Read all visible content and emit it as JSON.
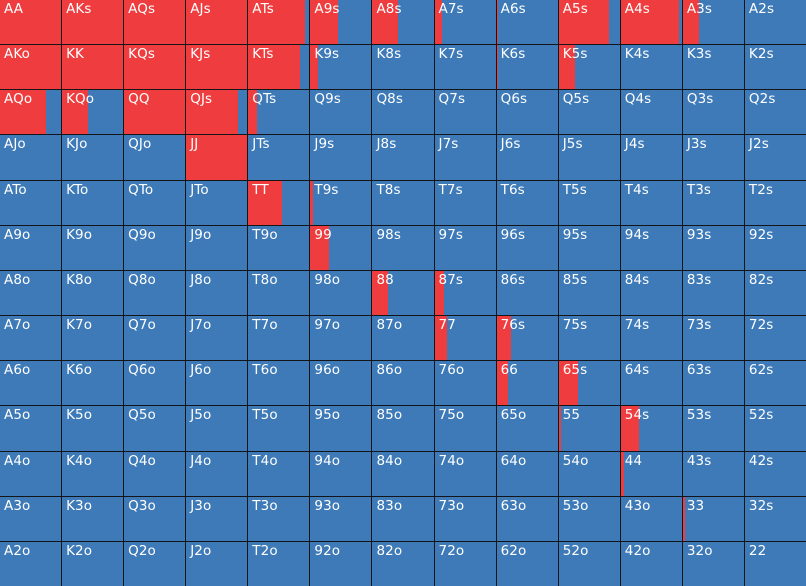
{
  "colors": {
    "raise": "#ef3d3f",
    "fold": "#3d7ab7",
    "grid_line": "#141518"
  },
  "ranks": [
    "A",
    "K",
    "Q",
    "J",
    "T",
    "9",
    "8",
    "7",
    "6",
    "5",
    "4",
    "3",
    "2"
  ],
  "hand_matrix": [
    {
      "cells": [
        {
          "hand": "AA",
          "raise_fraction": 1.0
        },
        {
          "hand": "AKs",
          "raise_fraction": 1.0
        },
        {
          "hand": "AQs",
          "raise_fraction": 1.0
        },
        {
          "hand": "AJs",
          "raise_fraction": 1.0
        },
        {
          "hand": "ATs",
          "raise_fraction": 0.93
        },
        {
          "hand": "A9s",
          "raise_fraction": 0.45
        },
        {
          "hand": "A8s",
          "raise_fraction": 0.42
        },
        {
          "hand": "A7s",
          "raise_fraction": 0.13
        },
        {
          "hand": "A6s",
          "raise_fraction": 0.03
        },
        {
          "hand": "A5s",
          "raise_fraction": 0.82
        },
        {
          "hand": "A4s",
          "raise_fraction": 0.95
        },
        {
          "hand": "A3s",
          "raise_fraction": 0.27
        },
        {
          "hand": "A2s",
          "raise_fraction": 0.0
        }
      ]
    },
    {
      "cells": [
        {
          "hand": "AKo",
          "raise_fraction": 1.0
        },
        {
          "hand": "KK",
          "raise_fraction": 1.0
        },
        {
          "hand": "KQs",
          "raise_fraction": 1.0
        },
        {
          "hand": "KJs",
          "raise_fraction": 1.0
        },
        {
          "hand": "KTs",
          "raise_fraction": 0.85
        },
        {
          "hand": "K9s",
          "raise_fraction": 0.13
        },
        {
          "hand": "K8s",
          "raise_fraction": 0.0
        },
        {
          "hand": "K7s",
          "raise_fraction": 0.0
        },
        {
          "hand": "K6s",
          "raise_fraction": 0.03
        },
        {
          "hand": "K5s",
          "raise_fraction": 0.27
        },
        {
          "hand": "K4s",
          "raise_fraction": 0.0
        },
        {
          "hand": "K3s",
          "raise_fraction": 0.0
        },
        {
          "hand": "K2s",
          "raise_fraction": 0.0
        }
      ]
    },
    {
      "cells": [
        {
          "hand": "AQo",
          "raise_fraction": 0.76
        },
        {
          "hand": "KQo",
          "raise_fraction": 0.42
        },
        {
          "hand": "QQ",
          "raise_fraction": 1.0
        },
        {
          "hand": "QJs",
          "raise_fraction": 0.85
        },
        {
          "hand": "QTs",
          "raise_fraction": 0.15
        },
        {
          "hand": "Q9s",
          "raise_fraction": 0.0
        },
        {
          "hand": "Q8s",
          "raise_fraction": 0.0
        },
        {
          "hand": "Q7s",
          "raise_fraction": 0.0
        },
        {
          "hand": "Q6s",
          "raise_fraction": 0.0
        },
        {
          "hand": "Q5s",
          "raise_fraction": 0.0
        },
        {
          "hand": "Q4s",
          "raise_fraction": 0.0
        },
        {
          "hand": "Q3s",
          "raise_fraction": 0.0
        },
        {
          "hand": "Q2s",
          "raise_fraction": 0.0
        }
      ]
    },
    {
      "cells": [
        {
          "hand": "AJo",
          "raise_fraction": 0.0
        },
        {
          "hand": "KJo",
          "raise_fraction": 0.0
        },
        {
          "hand": "QJo",
          "raise_fraction": 0.0
        },
        {
          "hand": "JJ",
          "raise_fraction": 1.0
        },
        {
          "hand": "JTs",
          "raise_fraction": 0.0
        },
        {
          "hand": "J9s",
          "raise_fraction": 0.0
        },
        {
          "hand": "J8s",
          "raise_fraction": 0.0
        },
        {
          "hand": "J7s",
          "raise_fraction": 0.0
        },
        {
          "hand": "J6s",
          "raise_fraction": 0.0
        },
        {
          "hand": "J5s",
          "raise_fraction": 0.0
        },
        {
          "hand": "J4s",
          "raise_fraction": 0.0
        },
        {
          "hand": "J3s",
          "raise_fraction": 0.0
        },
        {
          "hand": "J2s",
          "raise_fraction": 0.0
        }
      ]
    },
    {
      "cells": [
        {
          "hand": "ATo",
          "raise_fraction": 0.0
        },
        {
          "hand": "KTo",
          "raise_fraction": 0.0
        },
        {
          "hand": "QTo",
          "raise_fraction": 0.0
        },
        {
          "hand": "JTo",
          "raise_fraction": 0.0
        },
        {
          "hand": "TT",
          "raise_fraction": 0.55
        },
        {
          "hand": "T9s",
          "raise_fraction": 0.05
        },
        {
          "hand": "T8s",
          "raise_fraction": 0.0
        },
        {
          "hand": "T7s",
          "raise_fraction": 0.0
        },
        {
          "hand": "T6s",
          "raise_fraction": 0.0
        },
        {
          "hand": "T5s",
          "raise_fraction": 0.0
        },
        {
          "hand": "T4s",
          "raise_fraction": 0.0
        },
        {
          "hand": "T3s",
          "raise_fraction": 0.0
        },
        {
          "hand": "T2s",
          "raise_fraction": 0.0
        }
      ]
    },
    {
      "cells": [
        {
          "hand": "A9o",
          "raise_fraction": 0.0
        },
        {
          "hand": "K9o",
          "raise_fraction": 0.0
        },
        {
          "hand": "Q9o",
          "raise_fraction": 0.0
        },
        {
          "hand": "J9o",
          "raise_fraction": 0.0
        },
        {
          "hand": "T9o",
          "raise_fraction": 0.0
        },
        {
          "hand": "99",
          "raise_fraction": 0.31
        },
        {
          "hand": "98s",
          "raise_fraction": 0.0
        },
        {
          "hand": "97s",
          "raise_fraction": 0.0
        },
        {
          "hand": "96s",
          "raise_fraction": 0.0
        },
        {
          "hand": "95s",
          "raise_fraction": 0.0
        },
        {
          "hand": "94s",
          "raise_fraction": 0.0
        },
        {
          "hand": "93s",
          "raise_fraction": 0.0
        },
        {
          "hand": "92s",
          "raise_fraction": 0.0
        }
      ]
    },
    {
      "cells": [
        {
          "hand": "A8o",
          "raise_fraction": 0.0
        },
        {
          "hand": "K8o",
          "raise_fraction": 0.0
        },
        {
          "hand": "Q8o",
          "raise_fraction": 0.0
        },
        {
          "hand": "J8o",
          "raise_fraction": 0.0
        },
        {
          "hand": "T8o",
          "raise_fraction": 0.0
        },
        {
          "hand": "98o",
          "raise_fraction": 0.0
        },
        {
          "hand": "88",
          "raise_fraction": 0.26
        },
        {
          "hand": "87s",
          "raise_fraction": 0.15
        },
        {
          "hand": "86s",
          "raise_fraction": 0.0
        },
        {
          "hand": "85s",
          "raise_fraction": 0.0
        },
        {
          "hand": "84s",
          "raise_fraction": 0.0
        },
        {
          "hand": "83s",
          "raise_fraction": 0.0
        },
        {
          "hand": "82s",
          "raise_fraction": 0.0
        }
      ]
    },
    {
      "cells": [
        {
          "hand": "A7o",
          "raise_fraction": 0.0
        },
        {
          "hand": "K7o",
          "raise_fraction": 0.0
        },
        {
          "hand": "Q7o",
          "raise_fraction": 0.0
        },
        {
          "hand": "J7o",
          "raise_fraction": 0.0
        },
        {
          "hand": "T7o",
          "raise_fraction": 0.0
        },
        {
          "hand": "97o",
          "raise_fraction": 0.0
        },
        {
          "hand": "87o",
          "raise_fraction": 0.0
        },
        {
          "hand": "77",
          "raise_fraction": 0.2
        },
        {
          "hand": "76s",
          "raise_fraction": 0.23
        },
        {
          "hand": "75s",
          "raise_fraction": 0.0
        },
        {
          "hand": "74s",
          "raise_fraction": 0.0
        },
        {
          "hand": "73s",
          "raise_fraction": 0.0
        },
        {
          "hand": "72s",
          "raise_fraction": 0.0
        }
      ]
    },
    {
      "cells": [
        {
          "hand": "A6o",
          "raise_fraction": 0.0
        },
        {
          "hand": "K6o",
          "raise_fraction": 0.0
        },
        {
          "hand": "Q6o",
          "raise_fraction": 0.0
        },
        {
          "hand": "J6o",
          "raise_fraction": 0.0
        },
        {
          "hand": "T6o",
          "raise_fraction": 0.0
        },
        {
          "hand": "96o",
          "raise_fraction": 0.0
        },
        {
          "hand": "86o",
          "raise_fraction": 0.0
        },
        {
          "hand": "76o",
          "raise_fraction": 0.0
        },
        {
          "hand": "66",
          "raise_fraction": 0.18
        },
        {
          "hand": "65s",
          "raise_fraction": 0.32
        },
        {
          "hand": "64s",
          "raise_fraction": 0.0
        },
        {
          "hand": "63s",
          "raise_fraction": 0.0
        },
        {
          "hand": "62s",
          "raise_fraction": 0.0
        }
      ]
    },
    {
      "cells": [
        {
          "hand": "A5o",
          "raise_fraction": 0.0
        },
        {
          "hand": "K5o",
          "raise_fraction": 0.0
        },
        {
          "hand": "Q5o",
          "raise_fraction": 0.0
        },
        {
          "hand": "J5o",
          "raise_fraction": 0.0
        },
        {
          "hand": "T5o",
          "raise_fraction": 0.0
        },
        {
          "hand": "95o",
          "raise_fraction": 0.0
        },
        {
          "hand": "85o",
          "raise_fraction": 0.0
        },
        {
          "hand": "75o",
          "raise_fraction": 0.0
        },
        {
          "hand": "65o",
          "raise_fraction": 0.0
        },
        {
          "hand": "55",
          "raise_fraction": 0.03
        },
        {
          "hand": "54s",
          "raise_fraction": 0.3
        },
        {
          "hand": "53s",
          "raise_fraction": 0.0
        },
        {
          "hand": "52s",
          "raise_fraction": 0.0
        }
      ]
    },
    {
      "cells": [
        {
          "hand": "A4o",
          "raise_fraction": 0.0
        },
        {
          "hand": "K4o",
          "raise_fraction": 0.0
        },
        {
          "hand": "Q4o",
          "raise_fraction": 0.0
        },
        {
          "hand": "J4o",
          "raise_fraction": 0.0
        },
        {
          "hand": "T4o",
          "raise_fraction": 0.0
        },
        {
          "hand": "94o",
          "raise_fraction": 0.0
        },
        {
          "hand": "84o",
          "raise_fraction": 0.0
        },
        {
          "hand": "74o",
          "raise_fraction": 0.0
        },
        {
          "hand": "64o",
          "raise_fraction": 0.0
        },
        {
          "hand": "54o",
          "raise_fraction": 0.0
        },
        {
          "hand": "44",
          "raise_fraction": 0.05
        },
        {
          "hand": "43s",
          "raise_fraction": 0.0
        },
        {
          "hand": "42s",
          "raise_fraction": 0.0
        }
      ]
    },
    {
      "cells": [
        {
          "hand": "A3o",
          "raise_fraction": 0.0
        },
        {
          "hand": "K3o",
          "raise_fraction": 0.0
        },
        {
          "hand": "Q3o",
          "raise_fraction": 0.0
        },
        {
          "hand": "J3o",
          "raise_fraction": 0.0
        },
        {
          "hand": "T3o",
          "raise_fraction": 0.0
        },
        {
          "hand": "93o",
          "raise_fraction": 0.0
        },
        {
          "hand": "83o",
          "raise_fraction": 0.0
        },
        {
          "hand": "73o",
          "raise_fraction": 0.0
        },
        {
          "hand": "63o",
          "raise_fraction": 0.0
        },
        {
          "hand": "53o",
          "raise_fraction": 0.0
        },
        {
          "hand": "43o",
          "raise_fraction": 0.0
        },
        {
          "hand": "33",
          "raise_fraction": 0.03
        },
        {
          "hand": "32s",
          "raise_fraction": 0.0
        }
      ]
    },
    {
      "cells": [
        {
          "hand": "A2o",
          "raise_fraction": 0.0
        },
        {
          "hand": "K2o",
          "raise_fraction": 0.0
        },
        {
          "hand": "Q2o",
          "raise_fraction": 0.0
        },
        {
          "hand": "J2o",
          "raise_fraction": 0.0
        },
        {
          "hand": "T2o",
          "raise_fraction": 0.0
        },
        {
          "hand": "92o",
          "raise_fraction": 0.0
        },
        {
          "hand": "82o",
          "raise_fraction": 0.0
        },
        {
          "hand": "72o",
          "raise_fraction": 0.0
        },
        {
          "hand": "62o",
          "raise_fraction": 0.0
        },
        {
          "hand": "52o",
          "raise_fraction": 0.0
        },
        {
          "hand": "42o",
          "raise_fraction": 0.0
        },
        {
          "hand": "32o",
          "raise_fraction": 0.0
        },
        {
          "hand": "22",
          "raise_fraction": 0.0
        }
      ]
    }
  ]
}
